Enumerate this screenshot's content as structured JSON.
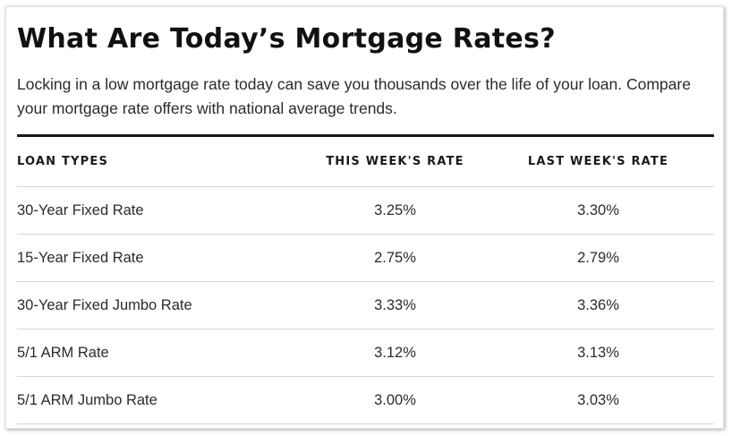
{
  "title": "What Are Today’s Mortgage Rates?",
  "description": "Locking in a low mortgage rate today can save you thousands over the life of your loan. Compare your mortgage rate offers with national average trends.",
  "table": {
    "headers": [
      "LOAN TYPES",
      "THIS WEEK'S RATE",
      "LAST WEEK'S RATE"
    ],
    "rows": [
      [
        "30-Year Fixed Rate",
        "3.25%",
        "3.30%"
      ],
      [
        "15-Year Fixed Rate",
        "2.75%",
        "2.79%"
      ],
      [
        "30-Year Fixed Jumbo Rate",
        "3.33%",
        "3.36%"
      ],
      [
        "5/1 ARM Rate",
        "3.12%",
        "3.13%"
      ],
      [
        "5/1 ARM Jumbo Rate",
        "3.00%",
        "3.03%"
      ]
    ]
  },
  "colors": {
    "text": "#2b2b2b",
    "heading": "#111111",
    "rule": "#1a1a1a",
    "row_border": "#d6d6d6"
  }
}
